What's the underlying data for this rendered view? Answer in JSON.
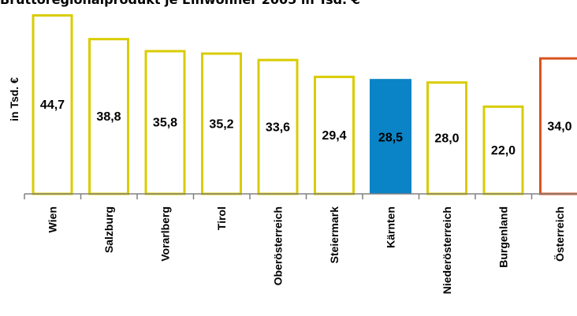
{
  "chart_data": {
    "type": "bar",
    "title": "Bruttoregionalprodukt je Einwohner 2005 in Tsd. €",
    "ylabel": "in Tsd. €",
    "categories": [
      "Wien",
      "Salzburg",
      "Vorarlberg",
      "Tirol",
      "Oberösterreich",
      "Steiermark",
      "Kärnten",
      "Niederösterreich",
      "Burgenland",
      "Österreich"
    ],
    "values": [
      44.7,
      38.8,
      35.8,
      35.2,
      33.6,
      29.4,
      28.5,
      28.0,
      22.0,
      34.0
    ],
    "value_labels": [
      "44,7",
      "38,8",
      "35,8",
      "35,2",
      "33,6",
      "29,4",
      "28,5",
      "28,0",
      "22,0",
      "34,0"
    ],
    "ylim": [
      0,
      45.5
    ],
    "grid": false,
    "legend": "none",
    "colors": {
      "default_outline": "#D9CC00",
      "highlight_fill": "#0A84C6",
      "total_outline": "#D9531E",
      "axis": "#808080"
    },
    "highlight_index": 6,
    "total_index": 9
  }
}
